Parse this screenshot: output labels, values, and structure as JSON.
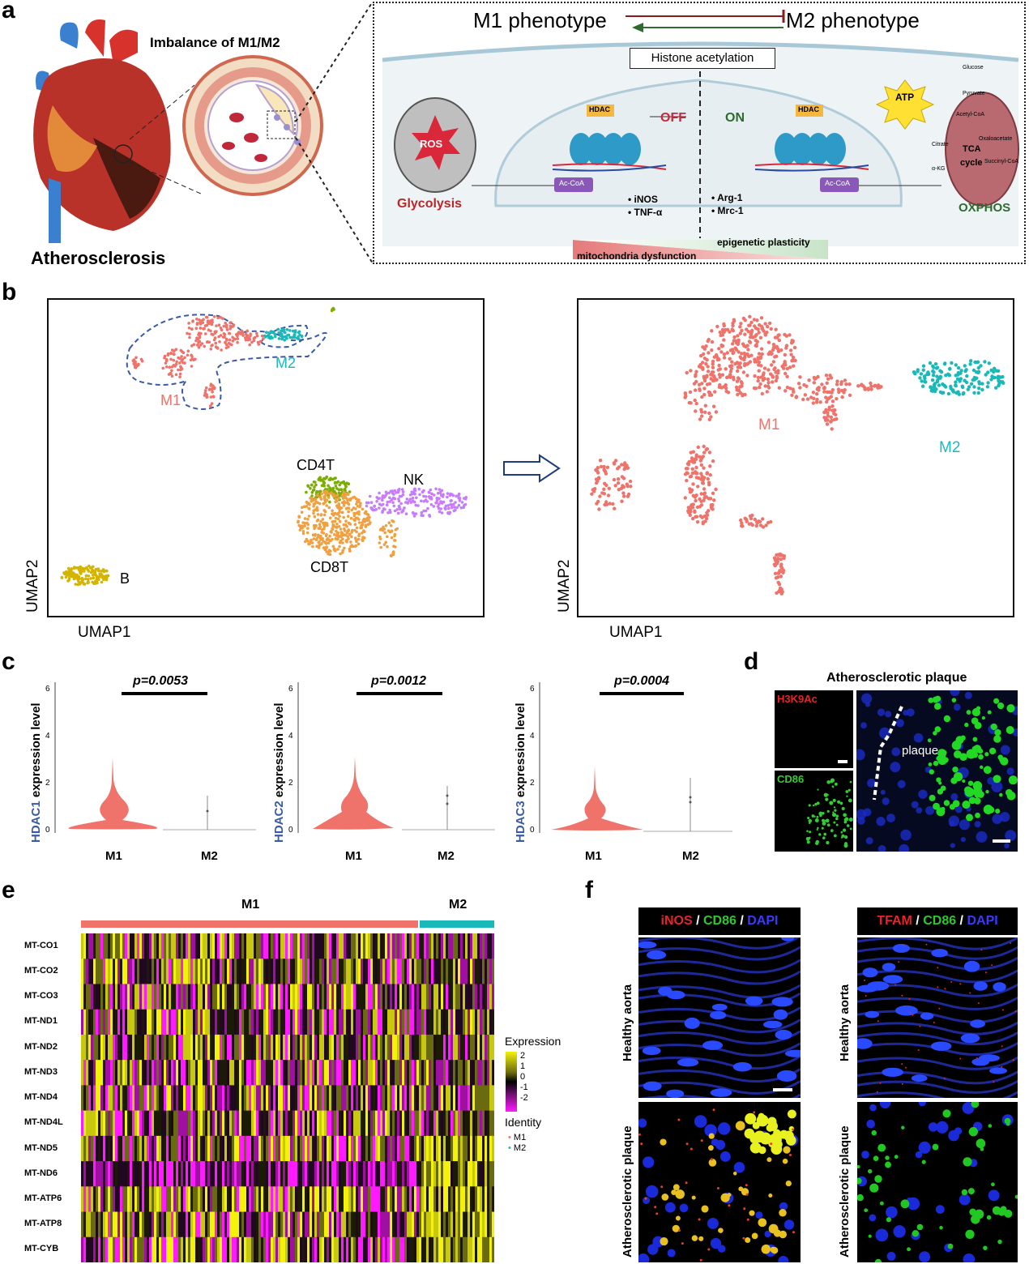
{
  "panels": {
    "a": "a",
    "b": "b",
    "c": "c",
    "d": "d",
    "e": "e",
    "f": "f"
  },
  "panel_a": {
    "disease_label": "Atherosclerosis",
    "imbalance_label": "Imbalance of M1/M2",
    "m1_title": "M1 phenotype",
    "m2_title": "M2 phenotype",
    "histone_box": "Histone acetylation",
    "ros": "ROS",
    "glycolysis": "Glycolysis",
    "hdac": "HDAC",
    "ac": "Ac",
    "off": "OFF",
    "on": "ON",
    "acoa": "Ac-CoA",
    "left_genes": [
      "iNOS",
      "TNF-α"
    ],
    "right_genes": [
      "Arg-1",
      "Mrc-1"
    ],
    "atp": "ATP",
    "oxphos": "OXPHOS",
    "glucose": "Glucose",
    "pyruvate": "Pyruvate",
    "acetyl_coa": "Acetyl-CoA",
    "citrate": "Citrate",
    "oxaloacetate": "Oxaloacetate",
    "tca1": "TCA",
    "tca2": "cycle",
    "succinyl": "Succinyl-CoA",
    "akg": "α-KG",
    "plasticity": "epigenetic plasticity",
    "dysfunction": "mitochondria dysfunction",
    "colors": {
      "m1": "#ef736b",
      "m2": "#1ab9b9",
      "red_arrow": "#8b1a1a",
      "green_arrow": "#2e6b2e"
    }
  },
  "panel_b": {
    "left_labels": {
      "m1": "M1",
      "m2": "M2",
      "cd4t": "CD4T",
      "nk": "NK",
      "cd8t": "CD8T",
      "b": "B"
    },
    "right_labels": {
      "m1": "M1",
      "m2": "M2"
    },
    "xaxis": "UMAP1",
    "yaxis": "UMAP2",
    "colors": {
      "m1": "#ef736b",
      "m2": "#1ab9b9",
      "cd4t": "#7cae00",
      "nk": "#c77cff",
      "cd8t": "#f0a040",
      "b": "#d4b400"
    }
  },
  "panel_c": {
    "genes": [
      "HDAC1",
      "HDAC2",
      "HDAC3"
    ],
    "ylabel_suffix": " expression level",
    "pvalues": [
      "p=0.0053",
      "p=0.0012",
      "p=0.0004"
    ],
    "groups": [
      "M1",
      "M2"
    ],
    "yticks": [
      "0",
      "2",
      "4",
      "6"
    ]
  },
  "panel_d": {
    "title": "Atherosclerotic plaque",
    "marker1": "H3K9Ac",
    "marker2": "CD86",
    "plaque": "plaque"
  },
  "panel_e": {
    "group_m1": "M1",
    "group_m2": "M2",
    "genes": [
      "MT-CO1",
      "MT-CO2",
      "MT-CO3",
      "MT-ND1",
      "MT-ND2",
      "MT-ND3",
      "MT-ND4",
      "MT-ND4L",
      "MT-ND5",
      "MT-ND6",
      "MT-ATP6",
      "MT-ATP8",
      "MT-CYB"
    ],
    "legend_title": "Expression",
    "legend_ticks": [
      "2",
      "1",
      "0",
      "-1",
      "-2"
    ],
    "identity_title": "Identity",
    "identity_items": [
      "M1",
      "M2"
    ]
  },
  "panel_f": {
    "left_header": [
      "iNOS",
      " / ",
      "CD86",
      " / ",
      "DAPI"
    ],
    "right_header": [
      "TFAM",
      " / ",
      "CD86",
      " / ",
      "DAPI"
    ],
    "row1": "Healthy aorta",
    "row2": "Atherosclerotic plaque"
  }
}
